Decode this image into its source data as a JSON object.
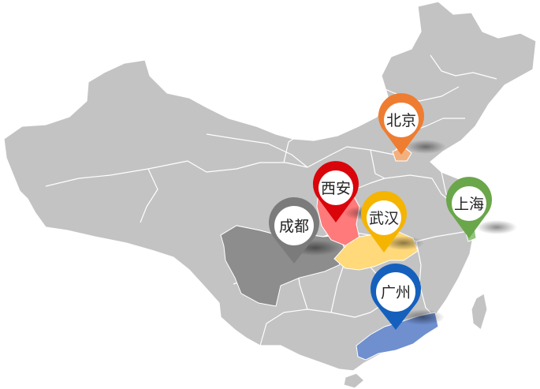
{
  "map": {
    "land_color": "#c3c3c3",
    "border_color": "#ffffff",
    "markers": [
      {
        "id": "beijing",
        "label": "北京",
        "color": "#ee7d31",
        "region_color": "#f3b07f",
        "icon": "location-pin-icon"
      },
      {
        "id": "xian",
        "label": "西安",
        "color": "#d9050b",
        "region_color": "#ff7a7a",
        "icon": "location-pin-icon"
      },
      {
        "id": "chengdu",
        "label": "成都",
        "color": "#7b7b7b",
        "region_color": "#8d8d8d",
        "icon": "location-pin-icon"
      },
      {
        "id": "wuhan",
        "label": "武汉",
        "color": "#f4b400",
        "region_color": "#ffd97a",
        "icon": "location-pin-icon"
      },
      {
        "id": "shanghai",
        "label": "上海",
        "color": "#6aa64a",
        "region_color": "#93c47d",
        "icon": "location-pin-icon"
      },
      {
        "id": "guangzhou",
        "label": "广州",
        "color": "#1560bd",
        "region_color": "#6f8fcf",
        "icon": "location-pin-icon"
      }
    ]
  }
}
